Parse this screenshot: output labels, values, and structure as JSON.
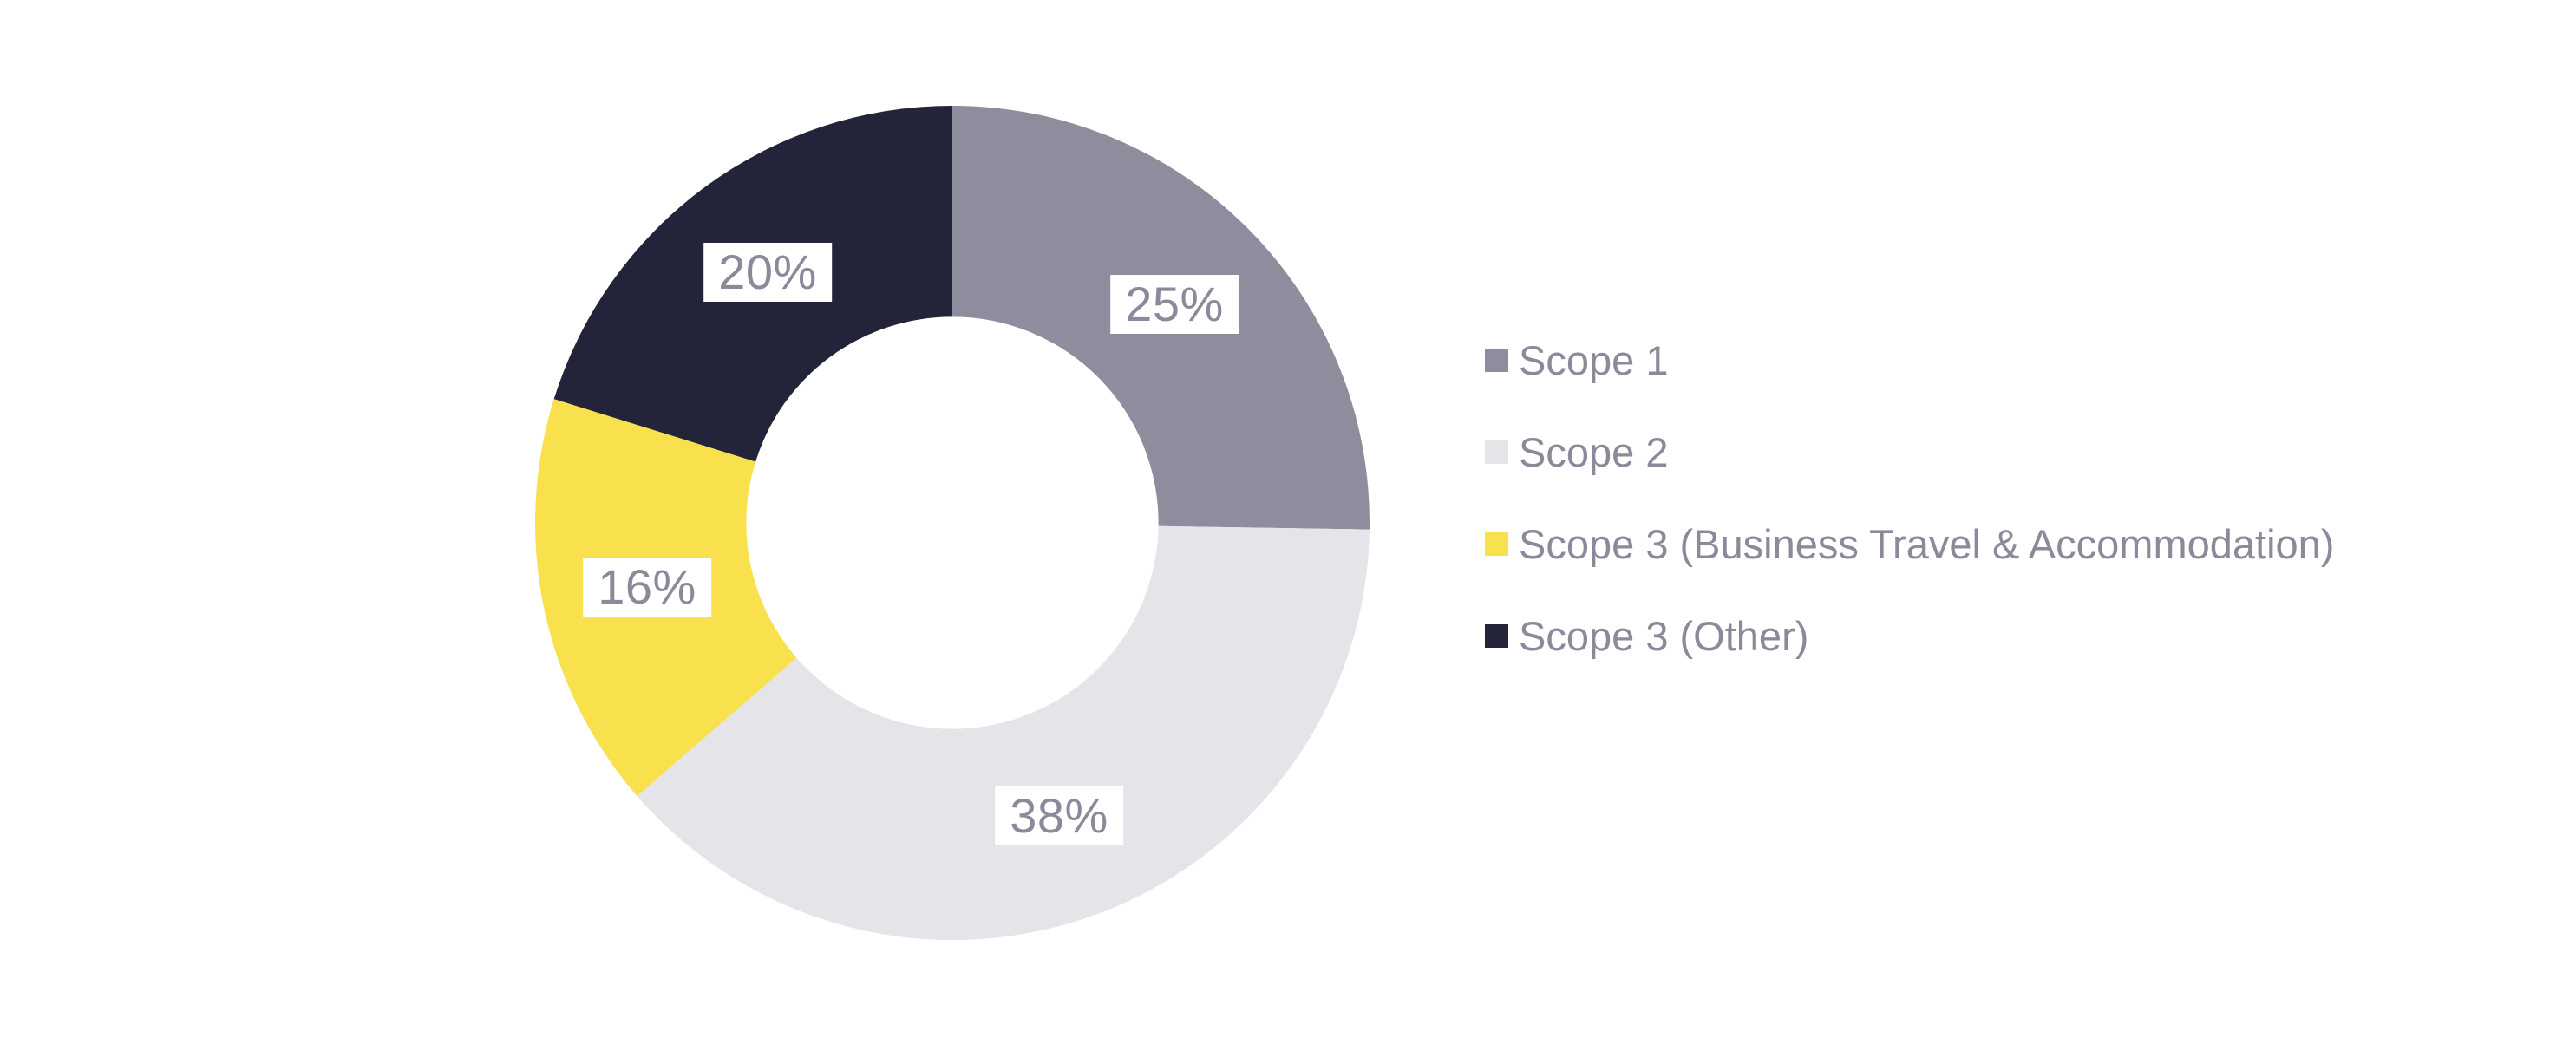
{
  "page": {
    "background_color": "#ffffff",
    "label_text_color": "#8a8a9b",
    "label_box_color": "#ffffff",
    "legend_text_color": "#8a8a9b"
  },
  "chart_data": {
    "type": "pie",
    "subtype": "donut",
    "title": "",
    "direction": "clockwise",
    "start_angle_deg": 0,
    "inner_radius_ratio": 0.494,
    "label_radius_ratio": 0.747,
    "legend_position": "right",
    "grid": false,
    "slices": [
      {
        "id": "scope-1",
        "label": "Scope 1",
        "value": 25,
        "display": "25%",
        "color": "#8d8d9e"
      },
      {
        "id": "scope-2",
        "label": "Scope 2",
        "value": 38,
        "display": "38%",
        "color": "#e4e4e9"
      },
      {
        "id": "scope-3-business-travel-accommodation",
        "label": "Scope 3 (Business Travel & Accommodation)",
        "value": 16,
        "display": "16%",
        "color": "#f8e14c"
      },
      {
        "id": "scope-3-other",
        "label": "Scope 3 (Other)",
        "value": 20,
        "display": "20%",
        "color": "#232339"
      }
    ]
  }
}
